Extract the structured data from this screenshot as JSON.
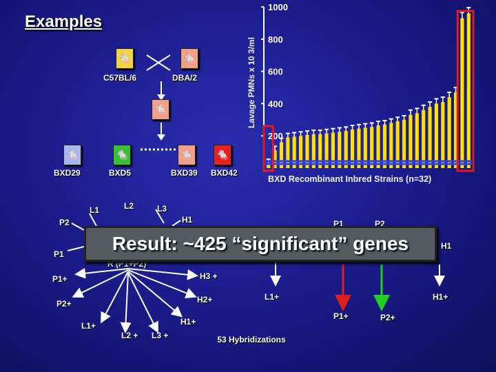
{
  "slide": {
    "title": "Examples",
    "result_text": "Result: ~425 “significant” genes",
    "hybridizations": "53 Hybridizations"
  },
  "cross": {
    "parent_left": "C57BL/6",
    "parent_right": "DBA/2",
    "strains": [
      "BXD29",
      "BXD5",
      "BXD39",
      "BXD42"
    ],
    "colors": {
      "c57": "#f0d24a",
      "dba": "#f0a08a",
      "f1": "#f0a08a",
      "bxd29": "#a8b8f0",
      "bxd5": "#38c038",
      "bxd39": "#f0a08a",
      "bxd42": "#e82020"
    }
  },
  "diagram": {
    "left": {
      "nodes": [
        "P2",
        "P1",
        "P1+",
        "P2+",
        "L1",
        "L2",
        "L3",
        "H1",
        "H3 +",
        "H2+",
        "R (P1+P2)",
        "L1+",
        "L2 +",
        "L3 +",
        "H1+"
      ]
    },
    "right": {
      "nodes": [
        "P1",
        "P2",
        "H1",
        "L1+",
        "P1+",
        "P2+",
        "H1+"
      ]
    }
  },
  "chart_data": {
    "type": "bar",
    "ylabel": "Lavage PMNs x 10 3/ml",
    "xlabel": "BXD Recombinant Inbred Strains (n=32)",
    "ylim": [
      0,
      1000
    ],
    "yticks": [
      200,
      400,
      600,
      800,
      1000
    ],
    "values": [
      30,
      110,
      160,
      190,
      195,
      200,
      205,
      210,
      210,
      215,
      220,
      225,
      230,
      240,
      245,
      250,
      255,
      265,
      270,
      280,
      290,
      300,
      330,
      340,
      360,
      380,
      400,
      410,
      440,
      470,
      930,
      960
    ],
    "errors": [
      25,
      25,
      25,
      25,
      25,
      25,
      25,
      25,
      25,
      25,
      25,
      25,
      25,
      25,
      25,
      25,
      25,
      25,
      25,
      25,
      25,
      25,
      30,
      30,
      30,
      30,
      30,
      30,
      30,
      30,
      35,
      35
    ],
    "bar_color": "#ffe000",
    "highlight": [
      0,
      30,
      31
    ]
  }
}
